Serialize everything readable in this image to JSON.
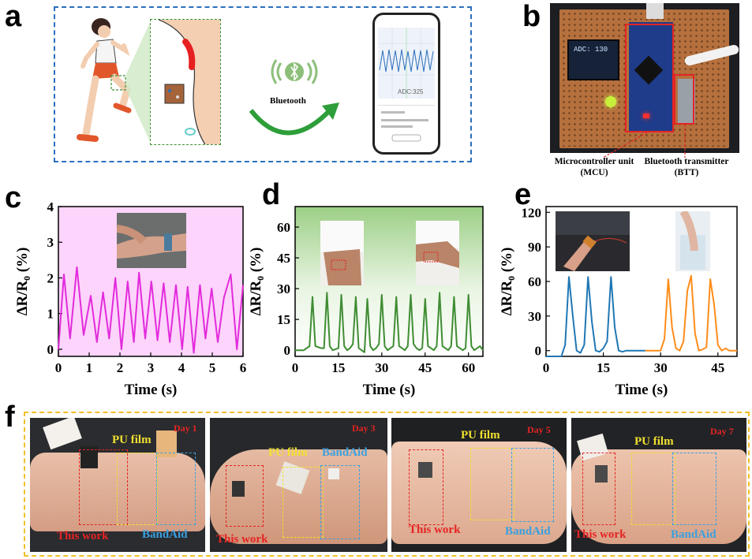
{
  "panels": {
    "a": {
      "letter": "a",
      "bluetooth_label": "Bluetooth",
      "phone_adc": "ADC:325"
    },
    "b": {
      "letter": "b",
      "oled_text": "ADC: 130",
      "mcu_label": "Microcontroller unit",
      "mcu_abbr": "(MCU)",
      "btt_label": "Bluetooth transmitter",
      "btt_abbr": "(BTT)"
    },
    "c": {
      "letter": "c"
    },
    "d": {
      "letter": "d"
    },
    "e": {
      "letter": "e"
    },
    "f": {
      "letter": "f",
      "photos": [
        {
          "day": "Day 1",
          "pu": "PU film",
          "band": "BandAid",
          "this": "This work"
        },
        {
          "day": "Day 3",
          "pu": "PU film",
          "band": "BandAid",
          "this": "This work"
        },
        {
          "day": "Day 5",
          "pu": "PU film",
          "band": "BandAid",
          "this": "This work"
        },
        {
          "day": "Day 7",
          "pu": "PU film",
          "band": "BandAid",
          "this": "This work"
        }
      ]
    }
  },
  "colors": {
    "magenta": "#e22bdc",
    "green": "#3f8d33",
    "blue": "#1f77b4",
    "orange": "#ff8c1a",
    "dash_blue": "#2b6fbd",
    "dash_yellow": "#f0c02a"
  },
  "chart_data": [
    {
      "panel": "c",
      "type": "line",
      "xlabel": "Time (s)",
      "ylabel": "ΔR/R₀ (%)",
      "xlim": [
        0,
        6
      ],
      "ylim": [
        -0.2,
        4
      ],
      "xticks": [
        0,
        1,
        2,
        3,
        4,
        5,
        6
      ],
      "yticks": [
        0,
        1,
        2,
        3,
        4
      ],
      "series": [
        {
          "color": "#e22bdc",
          "x": [
            0,
            0.18,
            0.38,
            0.6,
            0.82,
            1.05,
            1.25,
            1.45,
            1.65,
            1.85,
            2.05,
            2.25,
            2.45,
            2.62,
            2.82,
            3.02,
            3.22,
            3.42,
            3.62,
            3.82,
            4.02,
            4.2,
            4.4,
            4.6,
            4.78,
            4.98,
            5.18,
            5.38,
            5.6,
            5.8,
            6.0
          ],
          "y": [
            0,
            2.1,
            0.3,
            2.3,
            0.4,
            1.5,
            0.2,
            1.6,
            0.3,
            2.0,
            0.0,
            1.9,
            0.2,
            2.15,
            0.3,
            1.9,
            0.25,
            1.85,
            0.2,
            1.8,
            0.0,
            1.75,
            -0.1,
            1.8,
            0.3,
            1.7,
            0.2,
            1.45,
            2.1,
            0.0,
            1.8
          ]
        }
      ]
    },
    {
      "panel": "d",
      "type": "line",
      "xlabel": "Time (s)",
      "ylabel": "ΔR/R₀ (%)",
      "xlim": [
        0,
        65
      ],
      "ylim": [
        -3,
        70
      ],
      "xticks": [
        0,
        15,
        30,
        45,
        60
      ],
      "yticks": [
        0,
        15,
        30,
        45,
        60
      ],
      "series": [
        {
          "color": "#3f8d33",
          "x": [
            0,
            3,
            5,
            6,
            7,
            9,
            10,
            11,
            12,
            13,
            15,
            16,
            17,
            18,
            19,
            20,
            21,
            22,
            23,
            24,
            25,
            26,
            27,
            28,
            29,
            30,
            31,
            32,
            33,
            34,
            35,
            36,
            37,
            38,
            39,
            40,
            41,
            42,
            43,
            44,
            45,
            46,
            47,
            48,
            49,
            50,
            51,
            52,
            53,
            54,
            55,
            56,
            57,
            58,
            59,
            60,
            61,
            62,
            63,
            64,
            65
          ],
          "y": [
            0,
            0,
            2,
            26,
            2,
            1,
            1,
            28,
            2,
            0,
            1,
            27,
            2,
            0,
            1,
            3,
            26,
            1,
            0,
            -1,
            25,
            2,
            0,
            1,
            3,
            27,
            2,
            0,
            1,
            2,
            26,
            2,
            1,
            0,
            2,
            27,
            3,
            1,
            0,
            1,
            25,
            2,
            1,
            0,
            2,
            28,
            2,
            1,
            0,
            2,
            26,
            2,
            1,
            0,
            1,
            27,
            2,
            0,
            1,
            2,
            0
          ]
        }
      ]
    },
    {
      "panel": "e",
      "type": "line",
      "xlabel": "Time (s)",
      "ylabel": "ΔR/R₀ (%)",
      "xlim": [
        0,
        50
      ],
      "ylim": [
        -5,
        125
      ],
      "xticks": [
        0,
        15,
        30,
        45
      ],
      "yticks": [
        0,
        30,
        60,
        90,
        120
      ],
      "series": [
        {
          "color": "#1f77b4",
          "x": [
            0,
            4,
            5,
            6,
            7,
            8,
            9,
            10,
            11,
            12,
            13,
            14,
            15,
            16,
            17,
            18,
            19,
            20,
            21,
            26
          ],
          "y": [
            -5,
            -5,
            5,
            64,
            30,
            0,
            -2,
            5,
            64,
            25,
            0,
            -1,
            2,
            8,
            64,
            20,
            0,
            -1,
            0,
            0
          ]
        },
        {
          "color": "#ff8c1a",
          "x": [
            26,
            30,
            31,
            32,
            33,
            34,
            35,
            36,
            37,
            38,
            39,
            40,
            41,
            42,
            43,
            44,
            45,
            46,
            47,
            48,
            50
          ],
          "y": [
            0,
            0,
            10,
            62,
            20,
            2,
            0,
            8,
            52,
            65,
            15,
            0,
            1,
            3,
            62,
            40,
            5,
            0,
            2,
            0,
            0
          ]
        }
      ]
    }
  ]
}
